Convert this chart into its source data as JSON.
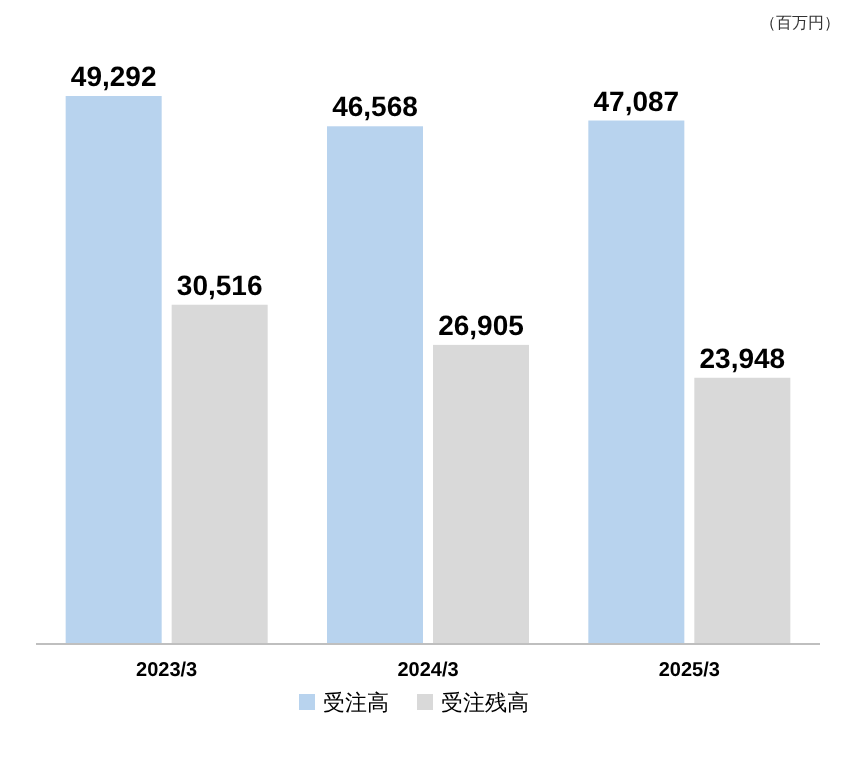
{
  "chart_data": {
    "type": "bar",
    "categories": [
      "2023/3",
      "2024/3",
      "2025/3"
    ],
    "series": [
      {
        "name": "受注高",
        "color": "#b8d3ee",
        "values": [
          49292,
          46568,
          47087
        ],
        "value_labels": [
          "49,292",
          "46,568",
          "47,087"
        ]
      },
      {
        "name": "受注残高",
        "color": "#d9d9d9",
        "values": [
          30516,
          26905,
          23948
        ],
        "value_labels": [
          "30,516",
          "26,905",
          "23,948"
        ]
      }
    ],
    "legend": "bottom",
    "annotations": [
      "（百万円）"
    ]
  }
}
